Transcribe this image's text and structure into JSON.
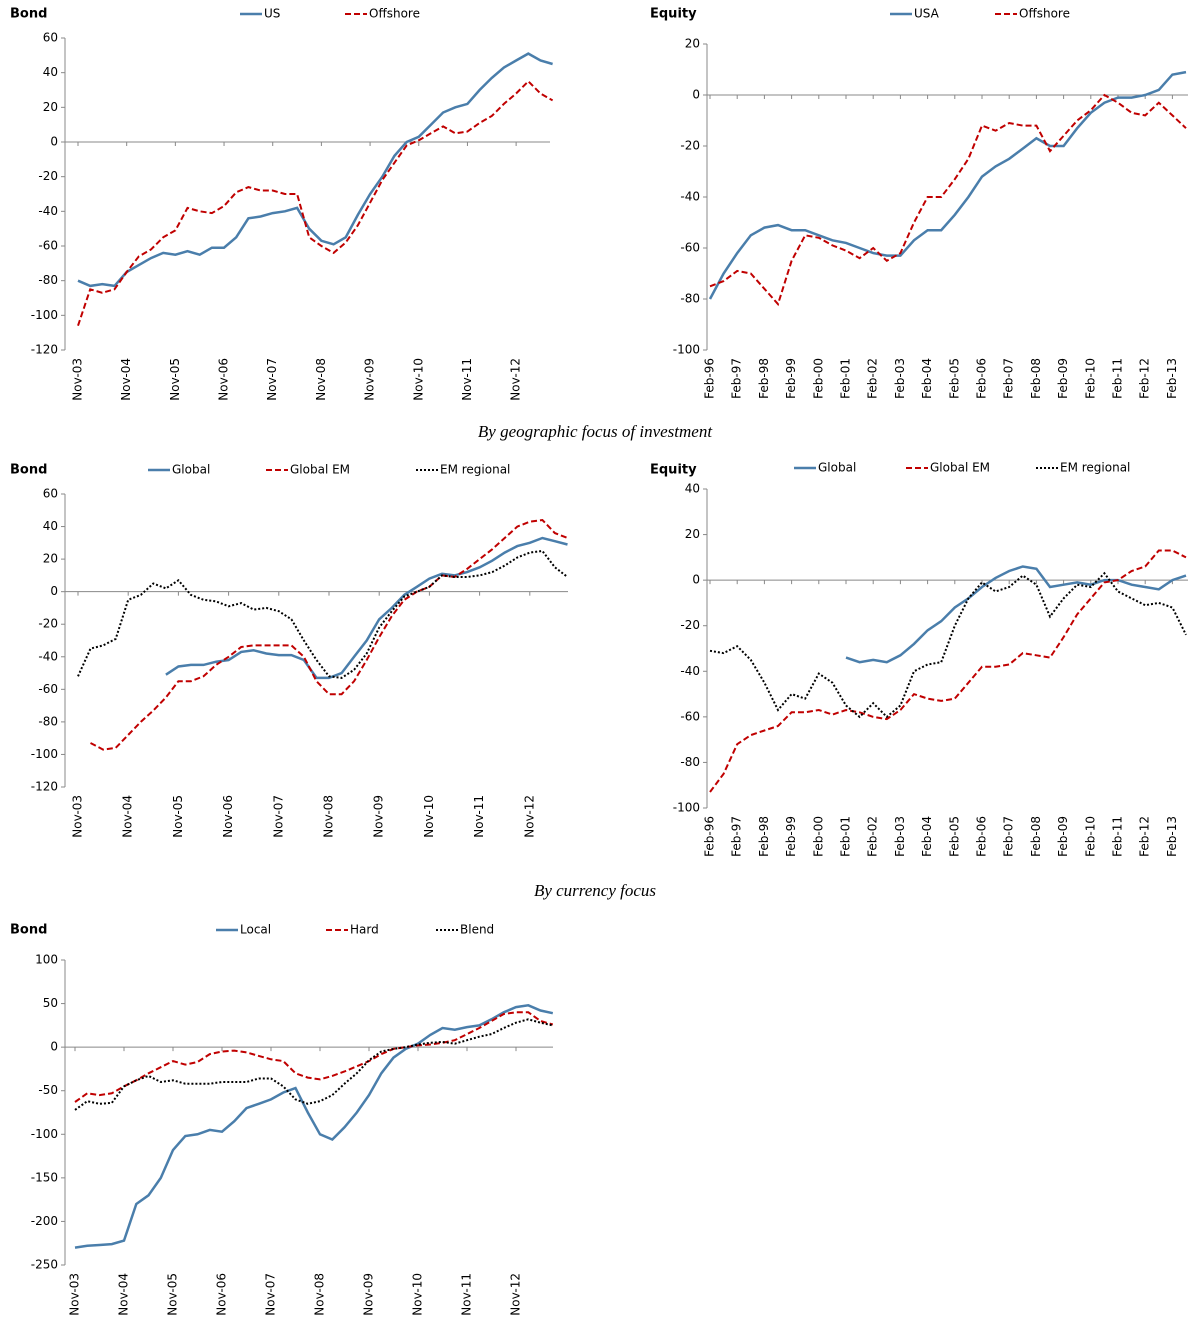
{
  "captions": [
    "By geographic focus of investment",
    "By currency focus"
  ],
  "chart_data": [
    {
      "type": "line",
      "title": "Bond",
      "categories": [
        "Nov-03",
        null,
        null,
        null,
        "Nov-04",
        null,
        null,
        null,
        "Nov-05",
        null,
        null,
        null,
        "Nov-06",
        null,
        null,
        null,
        "Nov-07",
        null,
        null,
        null,
        "Nov-08",
        null,
        null,
        null,
        "Nov-09",
        null,
        null,
        null,
        "Nov-10",
        null,
        null,
        null,
        "Nov-11",
        null,
        null,
        null,
        "Nov-12",
        null,
        null,
        null
      ],
      "ylim": [
        -120,
        60
      ],
      "yticks": [
        -120,
        -100,
        -80,
        -60,
        -40,
        -20,
        0,
        20,
        40,
        60
      ],
      "series": [
        {
          "name": "US",
          "color": "#4a7eab",
          "style": "solid",
          "values": [
            -80,
            -83,
            -82,
            -83,
            -75,
            -71,
            -67,
            -64,
            -65,
            -63,
            -65,
            -61,
            -61,
            -55,
            -44,
            -43,
            -41,
            -40,
            -38,
            -50,
            -57,
            -59,
            -55,
            -42,
            -30,
            -20,
            -8,
            0,
            3,
            10,
            17,
            20,
            22,
            30,
            37,
            43,
            47,
            51,
            47,
            45
          ]
        },
        {
          "name": "Offshore",
          "color": "#c00000",
          "style": "dashed",
          "values": [
            -106,
            -85,
            -87,
            -85,
            -75,
            -66,
            -62,
            -55,
            -51,
            -38,
            -40,
            -41,
            -37,
            -29,
            -26,
            -28,
            -28,
            -30,
            -30,
            -55,
            -60,
            -64,
            -58,
            -48,
            -35,
            -22,
            -12,
            -2,
            1,
            5,
            9,
            5,
            6,
            11,
            15,
            22,
            28,
            35,
            28,
            24
          ]
        }
      ]
    },
    {
      "type": "line",
      "title": "Equity",
      "categories": [
        "Feb-96",
        null,
        "Feb-97",
        null,
        "Feb-98",
        null,
        "Feb-99",
        null,
        "Feb-00",
        null,
        "Feb-01",
        null,
        "Feb-02",
        null,
        "Feb-03",
        null,
        "Feb-04",
        null,
        "Feb-05",
        null,
        "Feb-06",
        null,
        "Feb-07",
        null,
        "Feb-08",
        null,
        "Feb-09",
        null,
        "Feb-10",
        null,
        "Feb-11",
        null,
        "Feb-12",
        null,
        "Feb-13",
        null
      ],
      "ylim": [
        -100,
        20
      ],
      "yticks": [
        -100,
        -80,
        -60,
        -40,
        -20,
        0,
        20
      ],
      "series": [
        {
          "name": "USA",
          "color": "#4a7eab",
          "style": "solid",
          "values": [
            -80,
            -70,
            -62,
            -55,
            -52,
            -51,
            -53,
            -53,
            -55,
            -57,
            -58,
            -60,
            -62,
            -63,
            -63,
            -57,
            -53,
            -53,
            -47,
            -40,
            -32,
            -28,
            -25,
            -21,
            -17,
            -20,
            -20,
            -13,
            -7,
            -3,
            -1,
            -1,
            0,
            2,
            8,
            9
          ]
        },
        {
          "name": "Offshore",
          "color": "#c00000",
          "style": "dashed",
          "values": [
            -75,
            -73,
            -69,
            -70,
            -76,
            -82,
            -65,
            -55,
            -56,
            -59,
            -61,
            -64,
            -60,
            -65,
            -62,
            -50,
            -40,
            -40,
            -33,
            -25,
            -12,
            -14,
            -11,
            -12,
            -12,
            -22,
            -16,
            -10,
            -6,
            0,
            -3,
            -7,
            -8,
            -3,
            -8,
            -13
          ]
        }
      ]
    },
    {
      "type": "line",
      "title": "Bond",
      "categories": [
        "Nov-03",
        null,
        null,
        null,
        "Nov-04",
        null,
        null,
        null,
        "Nov-05",
        null,
        null,
        null,
        "Nov-06",
        null,
        null,
        null,
        "Nov-07",
        null,
        null,
        null,
        "Nov-08",
        null,
        null,
        null,
        "Nov-09",
        null,
        null,
        null,
        "Nov-10",
        null,
        null,
        null,
        "Nov-11",
        null,
        null,
        null,
        "Nov-12",
        null,
        null,
        null
      ],
      "ylim": [
        -120,
        60
      ],
      "yticks": [
        -120,
        -100,
        -80,
        -60,
        -40,
        -20,
        0,
        20,
        40,
        60
      ],
      "series": [
        {
          "name": "Global",
          "color": "#4a7eab",
          "style": "solid",
          "values": [
            null,
            null,
            null,
            null,
            null,
            null,
            null,
            -51,
            -46,
            -45,
            -45,
            -43,
            -42,
            -37,
            -36,
            -38,
            -39,
            -39,
            -42,
            -53,
            -53,
            -50,
            -40,
            -30,
            -17,
            -10,
            -2,
            3,
            8,
            11,
            10,
            12,
            15,
            19,
            24,
            28,
            30,
            33,
            31,
            29
          ]
        },
        {
          "name": "Global EM",
          "color": "#c00000",
          "style": "dashed",
          "values": [
            null,
            -93,
            -97,
            -96,
            -88,
            -80,
            -73,
            -65,
            -55,
            -55,
            -52,
            -45,
            -40,
            -34,
            -33,
            -33,
            -33,
            -33,
            -40,
            -55,
            -63,
            -63,
            -55,
            -42,
            -28,
            -15,
            -5,
            0,
            3,
            10,
            9,
            14,
            20,
            26,
            33,
            40,
            43,
            44,
            36,
            33
          ]
        },
        {
          "name": "EM regional",
          "color": "#000000",
          "style": "dotted",
          "values": [
            -52,
            -35,
            -33,
            -29,
            -5,
            -2,
            5,
            2,
            7,
            -2,
            -5,
            -6,
            -9,
            -7,
            -11,
            -10,
            -12,
            -17,
            -30,
            -42,
            -52,
            -53,
            -48,
            -38,
            -22,
            -12,
            -3,
            0,
            3,
            10,
            9,
            9,
            10,
            12,
            16,
            21,
            24,
            25,
            15,
            9
          ]
        }
      ]
    },
    {
      "type": "line",
      "title": "Equity",
      "categories": [
        "Feb-96",
        null,
        "Feb-97",
        null,
        "Feb-98",
        null,
        "Feb-99",
        null,
        "Feb-00",
        null,
        "Feb-01",
        null,
        "Feb-02",
        null,
        "Feb-03",
        null,
        "Feb-04",
        null,
        "Feb-05",
        null,
        "Feb-06",
        null,
        "Feb-07",
        null,
        "Feb-08",
        null,
        "Feb-09",
        null,
        "Feb-10",
        null,
        "Feb-11",
        null,
        "Feb-12",
        null,
        "Feb-13",
        null
      ],
      "ylim": [
        -100,
        40
      ],
      "yticks": [
        -100,
        -80,
        -60,
        -40,
        -20,
        0,
        20,
        40
      ],
      "series": [
        {
          "name": "Global",
          "color": "#4a7eab",
          "style": "solid",
          "values": [
            null,
            null,
            null,
            null,
            null,
            null,
            null,
            null,
            null,
            null,
            -34,
            -36,
            -35,
            -36,
            -33,
            -28,
            -22,
            -18,
            -12,
            -8,
            -3,
            1,
            4,
            6,
            5,
            -3,
            -2,
            -1,
            -2,
            0,
            0,
            -2,
            -3,
            -4,
            0,
            2
          ]
        },
        {
          "name": "Global EM",
          "color": "#c00000",
          "style": "dashed",
          "values": [
            -93,
            -85,
            -72,
            -68,
            -66,
            -64,
            -58,
            -58,
            -57,
            -59,
            -57,
            -58,
            -60,
            -61,
            -57,
            -50,
            -52,
            -53,
            -52,
            -45,
            -38,
            -38,
            -37,
            -32,
            -33,
            -34,
            -25,
            -15,
            -8,
            -1,
            0,
            4,
            6,
            13,
            13,
            10
          ]
        },
        {
          "name": "EM regional",
          "color": "#000000",
          "style": "dotted",
          "values": [
            -31,
            -32,
            -29,
            -35,
            -45,
            -57,
            -50,
            -52,
            -41,
            -45,
            -55,
            -60,
            -54,
            -60,
            -55,
            -40,
            -37,
            -36,
            -20,
            -8,
            -1,
            -5,
            -3,
            2,
            -2,
            -16,
            -8,
            -2,
            -3,
            3,
            -5,
            -8,
            -11,
            -10,
            -12,
            -24
          ]
        }
      ]
    },
    {
      "type": "line",
      "title": "Bond",
      "categories": [
        "Nov-03",
        null,
        null,
        null,
        "Nov-04",
        null,
        null,
        null,
        "Nov-05",
        null,
        null,
        null,
        "Nov-06",
        null,
        null,
        null,
        "Nov-07",
        null,
        null,
        null,
        "Nov-08",
        null,
        null,
        null,
        "Nov-09",
        null,
        null,
        null,
        "Nov-10",
        null,
        null,
        null,
        "Nov-11",
        null,
        null,
        null,
        "Nov-12",
        null,
        null,
        null
      ],
      "ylim": [
        -250,
        100
      ],
      "yticks": [
        -250,
        -200,
        -150,
        -100,
        -50,
        0,
        50,
        100
      ],
      "series": [
        {
          "name": "Local",
          "color": "#4a7eab",
          "style": "solid",
          "values": [
            -230,
            -228,
            -227,
            -226,
            -222,
            -180,
            -170,
            -150,
            -118,
            -102,
            -100,
            -95,
            -97,
            -85,
            -70,
            -65,
            -60,
            -52,
            -47,
            -75,
            -100,
            -106,
            -92,
            -75,
            -55,
            -30,
            -12,
            -2,
            4,
            14,
            22,
            20,
            23,
            25,
            32,
            40,
            46,
            48,
            42,
            39
          ]
        },
        {
          "name": "Hard",
          "color": "#c00000",
          "style": "dashed",
          "values": [
            -63,
            -53,
            -55,
            -53,
            -45,
            -38,
            -30,
            -23,
            -16,
            -20,
            -17,
            -8,
            -5,
            -4,
            -6,
            -10,
            -14,
            -16,
            -30,
            -35,
            -37,
            -33,
            -28,
            -22,
            -16,
            -8,
            -2,
            0,
            2,
            3,
            5,
            8,
            15,
            22,
            30,
            38,
            40,
            40,
            30,
            26
          ]
        },
        {
          "name": "Blend",
          "color": "#000000",
          "style": "dotted",
          "values": [
            -72,
            -62,
            -65,
            -64,
            -45,
            -38,
            -33,
            -40,
            -38,
            -42,
            -42,
            -42,
            -40,
            -40,
            -40,
            -36,
            -36,
            -45,
            -60,
            -65,
            -62,
            -55,
            -42,
            -30,
            -15,
            -5,
            -2,
            0,
            3,
            5,
            6,
            4,
            8,
            12,
            15,
            22,
            28,
            32,
            28,
            25
          ]
        }
      ]
    }
  ]
}
